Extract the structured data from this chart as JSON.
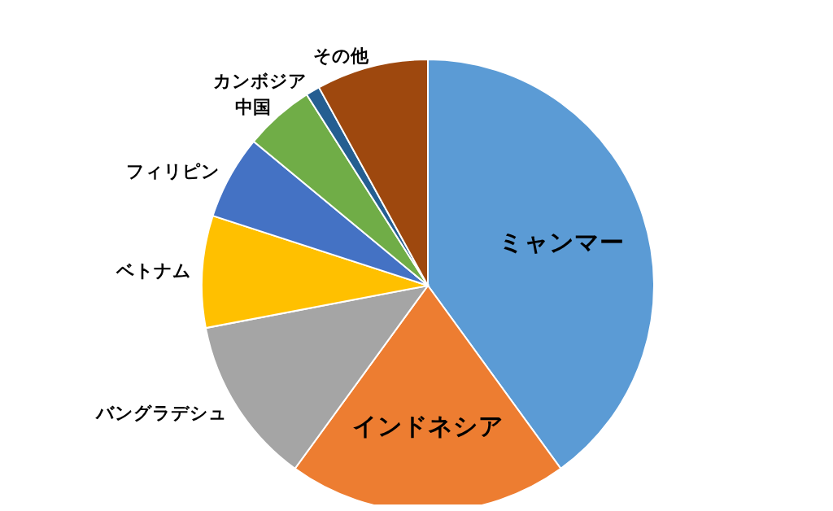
{
  "chart_data": {
    "type": "pie",
    "categories": [
      "ミャンマー",
      "インドネシア",
      "バングラデシュ",
      "ベトナム",
      "フィリピン",
      "中国",
      "カンボジア",
      "その他"
    ],
    "values": [
      40,
      20,
      12,
      8,
      6,
      5,
      1,
      8
    ],
    "colors": [
      "#5b9bd5",
      "#ed7d31",
      "#a5a5a5",
      "#ffc000",
      "#4472c4",
      "#70ad47",
      "#255e91",
      "#9e480e"
    ]
  }
}
